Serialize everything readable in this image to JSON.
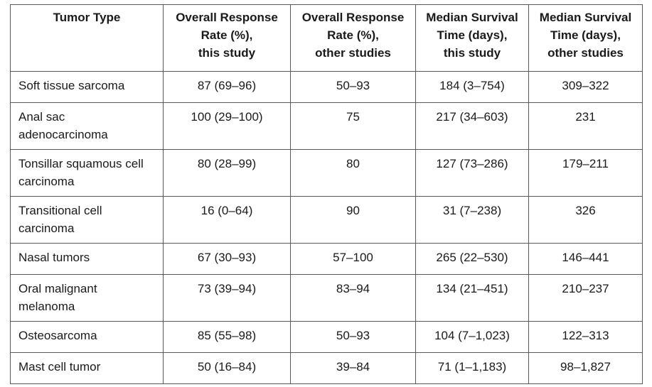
{
  "table": {
    "columns": [
      [
        "Tumor Type"
      ],
      [
        "Overall Response",
        "Rate (%),",
        "this study"
      ],
      [
        "Overall Response",
        "Rate (%),",
        "other studies"
      ],
      [
        "Median Survival",
        "Time (days),",
        "this study"
      ],
      [
        "Median Survival",
        "Time (days),",
        "other studies"
      ]
    ],
    "rows": [
      {
        "type": [
          "Soft tissue sarcoma"
        ],
        "orr_this": "87 (69–96)",
        "orr_other": "50–93",
        "mst_this": "184 (3–754)",
        "mst_other": "309–322"
      },
      {
        "type": [
          "Anal sac",
          "adenocarcinoma"
        ],
        "orr_this": "100 (29–100)",
        "orr_other": "75",
        "mst_this": "217 (34–603)",
        "mst_other": "231"
      },
      {
        "type": [
          "Tonsillar squamous cell",
          "carcinoma"
        ],
        "orr_this": "80 (28–99)",
        "orr_other": "80",
        "mst_this": "127 (73–286)",
        "mst_other": "179–211"
      },
      {
        "type": [
          "Transitional cell",
          "carcinoma"
        ],
        "orr_this": "16 (0–64)",
        "orr_other": "90",
        "mst_this": "31 (7–238)",
        "mst_other": "326"
      },
      {
        "type": [
          "Nasal tumors"
        ],
        "orr_this": "67 (30–93)",
        "orr_other": "57–100",
        "mst_this": "265 (22–530)",
        "mst_other": "146–441"
      },
      {
        "type": [
          "Oral malignant",
          "melanoma"
        ],
        "orr_this": "73 (39–94)",
        "orr_other": "83–94",
        "mst_this": "134 (21–451)",
        "mst_other": "210–237"
      },
      {
        "type": [
          "Osteosarcoma"
        ],
        "orr_this": "85 (55–98)",
        "orr_other": "50–93",
        "mst_this": "104 (7–1,023)",
        "mst_other": "122–313"
      },
      {
        "type": [
          "Mast cell tumor"
        ],
        "orr_this": "50 (16–84)",
        "orr_other": "39–84",
        "mst_this": "71 (1–1,183)",
        "mst_other": "98–1,827"
      }
    ]
  }
}
